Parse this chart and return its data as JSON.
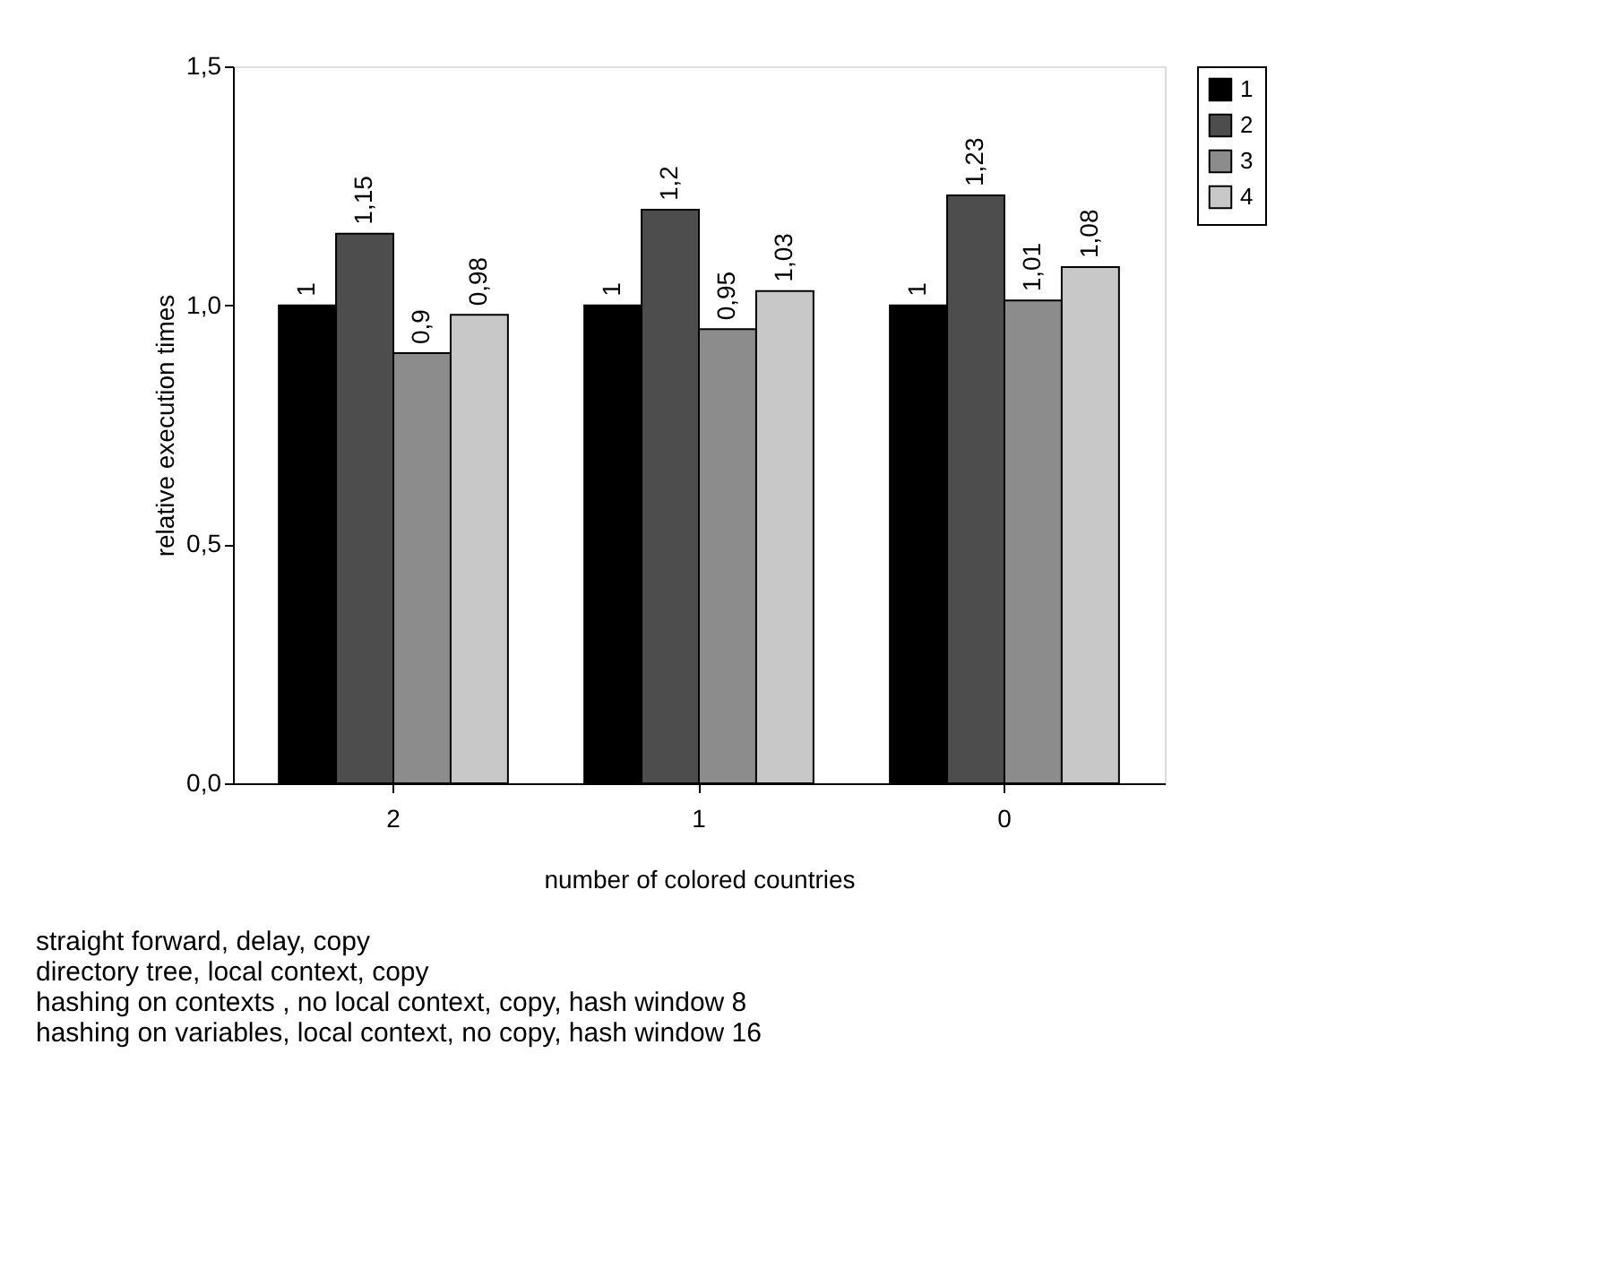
{
  "chart_data": {
    "type": "bar",
    "xlabel": "number of colored countries",
    "ylabel": "relative execution times",
    "categories": [
      "2",
      "1",
      "0"
    ],
    "series": [
      {
        "name": "1",
        "color": "#000000",
        "values": [
          1,
          1,
          1
        ],
        "value_labels": [
          "1",
          "1",
          "1"
        ]
      },
      {
        "name": "2",
        "color": "#4d4d4d",
        "values": [
          1.15,
          1.2,
          1.23
        ],
        "value_labels": [
          "1,15",
          "1,2",
          "1,23"
        ]
      },
      {
        "name": "3",
        "color": "#8c8c8c",
        "values": [
          0.9,
          0.95,
          1.01
        ],
        "value_labels": [
          "0,9",
          "0,95",
          "1,01"
        ]
      },
      {
        "name": "4",
        "color": "#c8c8c8",
        "values": [
          0.98,
          1.03,
          1.08
        ],
        "value_labels": [
          "0,98",
          "1,03",
          "1,08"
        ]
      }
    ],
    "ylim": [
      0,
      1.5
    ],
    "yticks": [
      {
        "value": 0,
        "label": "0,0"
      },
      {
        "value": 0.5,
        "label": "0,5"
      },
      {
        "value": 1,
        "label": "1,0"
      },
      {
        "value": 1.5,
        "label": "1,5"
      }
    ],
    "grid": false,
    "legend": "top right",
    "annotations": [
      "straight forward, delay, copy",
      "directory tree, local context, copy",
      "hashing on contexts , no local context, copy, hash window 8",
      "hashing on variables, local context, no copy, hash window 16"
    ]
  }
}
